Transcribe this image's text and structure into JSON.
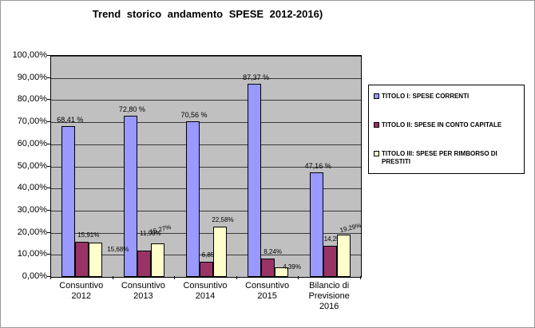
{
  "chart": {
    "title": "Trend storico andamento SPESE 2012-2016)"
  },
  "chart_data": {
    "type": "bar",
    "title": "Trend storico andamento SPESE 2012-2016)",
    "xlabel": "",
    "ylabel": "",
    "ylim": [
      0,
      100
    ],
    "grid": true,
    "legend_position": "right",
    "plot_bg": "#C0C0C0",
    "yticks": [
      "0,00%",
      "10,00%",
      "20,00%",
      "30,00%",
      "40,00%",
      "50,00%",
      "60,00%",
      "70,00%",
      "80,00%",
      "90,00%",
      "100,00%"
    ],
    "categories": [
      "Consuntivo 2012",
      "Consuntivo 2013",
      "Consuntivo 2014",
      "Consuntivo 2015",
      "Bilancio di Previsione 2016"
    ],
    "series": [
      {
        "name": "TITOLO I: SPESE CORRENTI",
        "color": "#9999FF",
        "values": [
          68.41,
          72.8,
          70.56,
          87.37,
          47.16
        ],
        "labels": [
          "68,41 %",
          "72,80 %",
          "70,56 %",
          "87,37 %",
          "47,16 %"
        ]
      },
      {
        "name": "TITOLO II: SPESE  IN CONTO CAPITALE",
        "color": "#993366",
        "values": [
          15.91,
          11.93,
          6.85,
          8.24,
          14.25
        ],
        "labels": [
          "15,91%",
          "11,93%",
          "6,85%",
          "8,24%",
          "14,25%"
        ]
      },
      {
        "name": "TITOLO III: SPESE PER RIMBORSO DI PRESTITI",
        "color": "#FFFFCC",
        "values": [
          15.68,
          15.27,
          22.58,
          4.39,
          19.29
        ],
        "labels": [
          "15,68%",
          "15,27%",
          "22,58%",
          "4,39%",
          "19,29%"
        ]
      }
    ]
  }
}
